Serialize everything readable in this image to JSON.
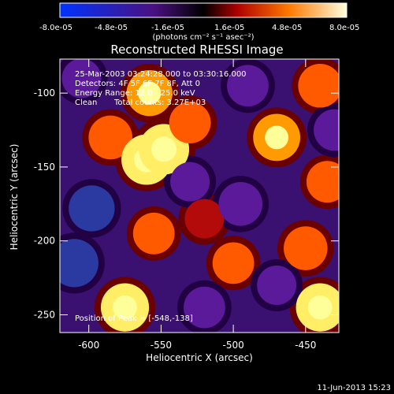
{
  "colorbar": {
    "ticks": [
      "-8.0e-05",
      "-4.8e-05",
      "-1.6e-05",
      "1.6e-05",
      "4.8e-05",
      "8.0e-05"
    ],
    "unit_label": "(photons cm⁻² s⁻¹ asec⁻²)"
  },
  "title": "Reconstructed RHESSI Image",
  "info": {
    "line1": "25-Mar-2003 03:24:28.000 to 03:30:16.000",
    "line2": "Detectors: 4F 5F 6F 7F 8F, Att 0",
    "line3": "Energy Range: 12.0 - 25.0 keV",
    "line4_a": "Clean",
    "line4_b": "Total counts: 3.27E+03"
  },
  "peak_label": "Position of Peak = [-548,-138]",
  "x_axis": {
    "label": "Heliocentric X (arcsec)",
    "ticks": [
      "-600",
      "-550",
      "-500",
      "-450"
    ],
    "tick_values": [
      -600,
      -550,
      -500,
      -450
    ],
    "range": [
      -620,
      -427
    ]
  },
  "y_axis": {
    "label": "Heliocentric Y (arcsec)",
    "ticks": [
      "-100",
      "-150",
      "-200",
      "-250"
    ],
    "tick_values": [
      -100,
      -150,
      -200,
      -250
    ],
    "range": [
      -262,
      -77
    ]
  },
  "timestamp": "11-Jun-2013 15:23",
  "image_blobs": [
    {
      "x": -610,
      "y": -215,
      "v": -0.9
    },
    {
      "x": -598,
      "y": -178,
      "v": -0.8
    },
    {
      "x": -585,
      "y": -130,
      "v": 0.7
    },
    {
      "x": -560,
      "y": -145,
      "v": 1.0
    },
    {
      "x": -548,
      "y": -138,
      "v": 1.0
    },
    {
      "x": -558,
      "y": -100,
      "v": 0.8
    },
    {
      "x": -530,
      "y": -120,
      "v": 0.6
    },
    {
      "x": -575,
      "y": -245,
      "v": 0.9
    },
    {
      "x": -555,
      "y": -195,
      "v": 0.6
    },
    {
      "x": -520,
      "y": -185,
      "v": 0.5
    },
    {
      "x": -500,
      "y": -215,
      "v": 0.6
    },
    {
      "x": -495,
      "y": -175,
      "v": -0.7
    },
    {
      "x": -470,
      "y": -130,
      "v": 0.85
    },
    {
      "x": -440,
      "y": -95,
      "v": 0.7
    },
    {
      "x": -435,
      "y": -160,
      "v": 0.6
    },
    {
      "x": -450,
      "y": -205,
      "v": 0.7
    },
    {
      "x": -440,
      "y": -245,
      "v": 0.9
    },
    {
      "x": -520,
      "y": -245,
      "v": -0.6
    },
    {
      "x": -490,
      "y": -95,
      "v": -0.6
    },
    {
      "x": -605,
      "y": -90,
      "v": -0.5
    },
    {
      "x": -530,
      "y": -160,
      "v": -0.5
    },
    {
      "x": -470,
      "y": -230,
      "v": -0.5
    },
    {
      "x": -430,
      "y": -125,
      "v": -0.6
    }
  ]
}
